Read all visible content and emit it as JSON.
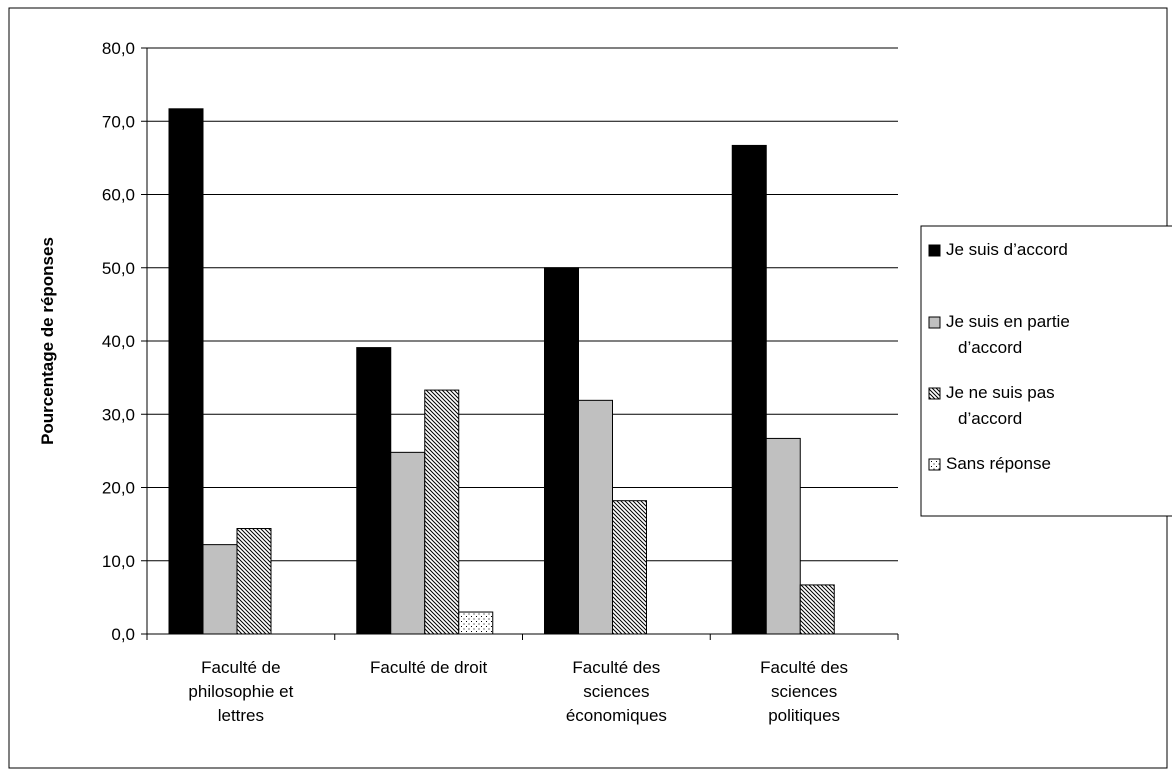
{
  "chart_data": {
    "type": "bar",
    "title": "",
    "xlabel": "",
    "ylabel": "Pourcentage de réponses",
    "ylim": [
      0,
      80
    ],
    "yticks": [
      "0,0",
      "10,0",
      "20,0",
      "30,0",
      "40,0",
      "50,0",
      "60,0",
      "70,0",
      "80,0"
    ],
    "grid": "horizontal",
    "legend_position": "right",
    "categories": [
      [
        "Faculté de",
        "philosophie et",
        "lettres"
      ],
      [
        "Faculté de droit"
      ],
      [
        "Faculté des",
        "sciences",
        "économiques"
      ],
      [
        "Faculté des",
        "sciences",
        "politiques"
      ]
    ],
    "series": [
      {
        "name": [
          "Je suis d’accord"
        ],
        "pattern": "solid-black",
        "values": [
          71.7,
          39.1,
          50.0,
          66.7
        ]
      },
      {
        "name": [
          "Je suis en partie",
          "d’accord"
        ],
        "pattern": "solid-grey",
        "values": [
          12.2,
          24.8,
          31.9,
          26.7
        ]
      },
      {
        "name": [
          "Je ne suis pas",
          "d’accord"
        ],
        "pattern": "diagonal-hatch",
        "values": [
          14.4,
          33.3,
          18.2,
          6.7
        ]
      },
      {
        "name": [
          "Sans réponse"
        ],
        "pattern": "dotted",
        "values": [
          0,
          3.0,
          0,
          0
        ]
      }
    ],
    "colors": {
      "black": "#000000",
      "grey": "#c0c0c0",
      "frame": "#000000"
    }
  }
}
